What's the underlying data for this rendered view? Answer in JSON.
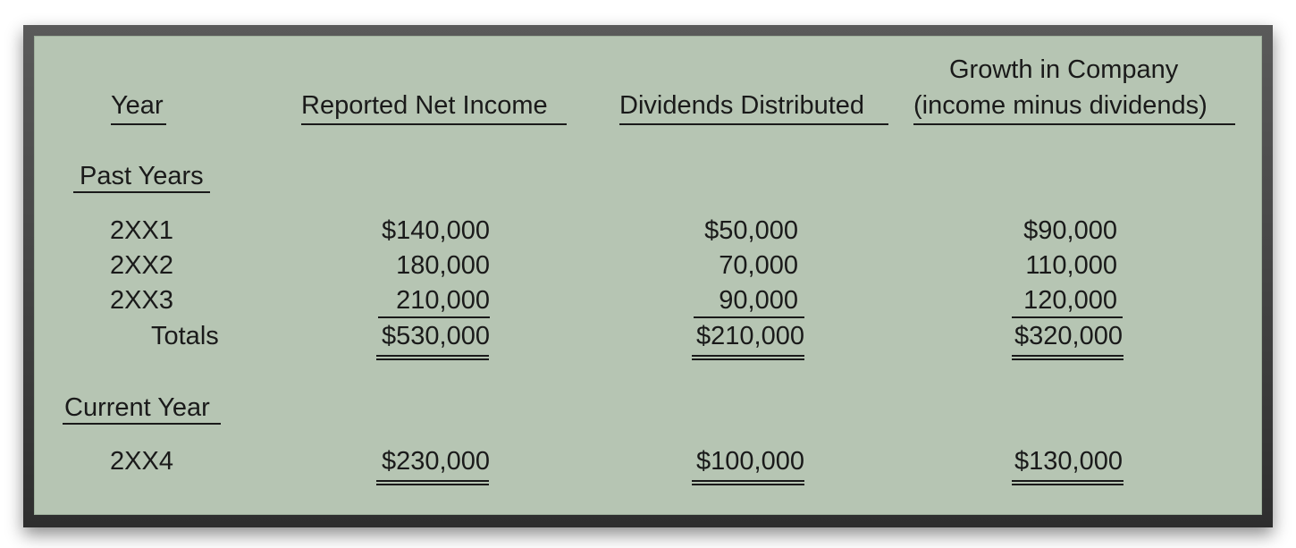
{
  "headers": {
    "year": "Year",
    "net_income": "Reported Net Income",
    "dividends": "Dividends Distributed",
    "growth_line1": "Growth in Company",
    "growth_line2": "(income minus dividends)"
  },
  "sections": {
    "past": {
      "label": "Past Years",
      "rows": [
        {
          "year": "2XX1",
          "net_income": "$140,000",
          "dividends": "$50,000",
          "growth": "$90,000"
        },
        {
          "year": "2XX2",
          "net_income": "180,000",
          "dividends": "70,000",
          "growth": "110,000"
        },
        {
          "year": "2XX3",
          "net_income": "210,000",
          "dividends": "90,000",
          "growth": "120,000"
        }
      ],
      "totals": {
        "label": "Totals",
        "net_income": "$530,000",
        "dividends": "$210,000",
        "growth": "$320,000"
      }
    },
    "current": {
      "label": "Current Year",
      "rows": [
        {
          "year": "2XX4",
          "net_income": "$230,000",
          "dividends": "$100,000",
          "growth": "$130,000"
        }
      ]
    }
  }
}
